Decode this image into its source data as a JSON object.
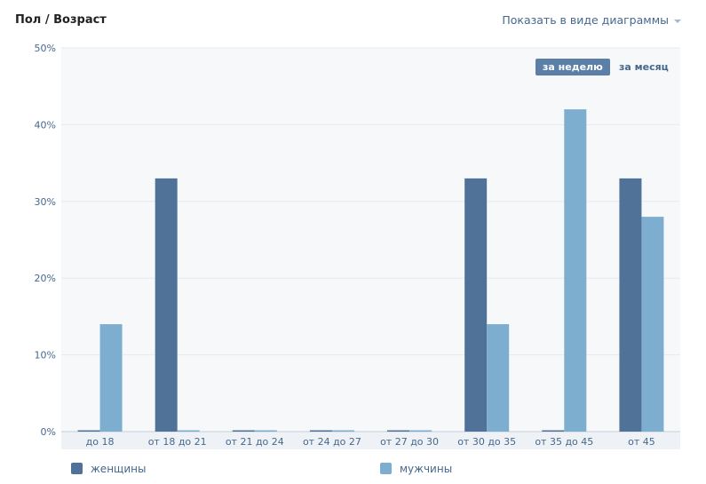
{
  "header": {
    "title": "Пол / Возраст",
    "view_toggle_label": "Показать в виде диаграммы"
  },
  "period": {
    "week_label": "за неделю",
    "month_label": "за месяц",
    "selected": "week"
  },
  "colors": {
    "women": "#507299",
    "men": "#7eaecf",
    "grid": "#e7eaed",
    "plot_bg": "#f7f8fa",
    "axis_text": "#45688e"
  },
  "chart_data": {
    "type": "bar",
    "title": "Пол / Возраст",
    "categories": [
      "до 18",
      "от 18 до 21",
      "от 21 до 24",
      "от 24 до 27",
      "от 27 до 30",
      "от 30 до 35",
      "от 35 до 45",
      "от 45"
    ],
    "series": [
      {
        "name": "женщины",
        "values": [
          0,
          33,
          0,
          0,
          0,
          33,
          0,
          33
        ]
      },
      {
        "name": "мужчины",
        "values": [
          14,
          0,
          0,
          0,
          0,
          14,
          42,
          28
        ]
      }
    ],
    "ylim": [
      0,
      50
    ],
    "yticks": [
      "0%",
      "10%",
      "20%",
      "30%",
      "40%",
      "50%"
    ],
    "grid": true,
    "legend_position": "bottom"
  }
}
